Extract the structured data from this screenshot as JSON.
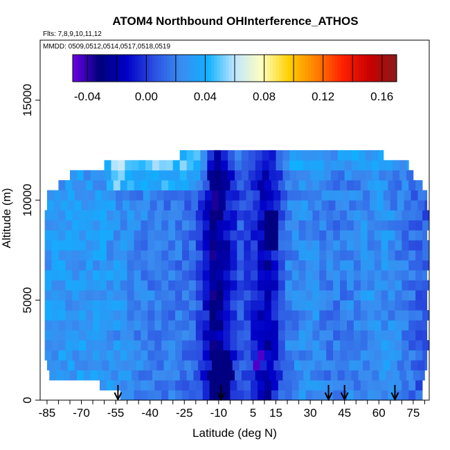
{
  "chart_data": {
    "type": "heatmap",
    "title": "ATOM4 Northbound OHInterference_ATHOS",
    "flights_label": "Flts: 7,8,9,10,11,12",
    "dates_label": "MMDD: 0509,0512,0514,0517,0518,0519",
    "xlabel": "Latitude (deg N)",
    "ylabel": "Altitude (m)",
    "xlim": [
      -88,
      82
    ],
    "ylim": [
      0,
      18000
    ],
    "x_ticks": [
      -85,
      -80,
      -75,
      -70,
      -65,
      -60,
      -55,
      -50,
      -45,
      -40,
      -35,
      -30,
      -25,
      -20,
      -15,
      -10,
      -5,
      0,
      5,
      10,
      15,
      20,
      25,
      30,
      35,
      40,
      45,
      50,
      55,
      60,
      65,
      70,
      75,
      80
    ],
    "x_tick_labels": [
      "-85",
      "-70",
      "-55",
      "-40",
      "-25",
      "-10",
      "5",
      "15",
      "30",
      "45",
      "60",
      "75"
    ],
    "x_tick_label_values": [
      -85,
      -70,
      -55,
      -40,
      -25,
      -10,
      5,
      15,
      30,
      45,
      60,
      75
    ],
    "y_ticks": [
      0,
      5000,
      10000,
      15000
    ],
    "y_tick_labels": [
      "0",
      "5000",
      "10000",
      "15000"
    ],
    "colorbar": {
      "range": [
        -0.05,
        0.17
      ],
      "breaks": [
        -0.04,
        -0.02,
        0.0,
        0.02,
        0.04,
        0.06,
        0.08,
        0.1,
        0.12,
        0.14,
        0.16
      ],
      "tick_labels": [
        "-0.04",
        "0.00",
        "0.04",
        "0.08",
        "0.12",
        "0.16"
      ],
      "tick_values": [
        -0.04,
        0.0,
        0.04,
        0.08,
        0.12,
        0.16
      ],
      "colors": [
        "#6a00e6",
        "#00007a",
        "#0000c8",
        "#2b4fe0",
        "#3a8cf0",
        "#10b0ff",
        "#bfe6ff",
        "#ffffc0",
        "#ffd000",
        "#ff8000",
        "#ff2000",
        "#c80000",
        "#8a1a1a"
      ]
    },
    "grid": false,
    "arrow_latitudes": [
      -54,
      -9,
      38,
      45,
      67
    ],
    "altitude_bins_m": [
      0,
      500,
      1000,
      1500,
      2000,
      2500,
      3000,
      3500,
      4000,
      4500,
      5000,
      5500,
      6000,
      6500,
      7000,
      7500,
      8000,
      8500,
      9000,
      9500,
      10000,
      10500,
      11000,
      11500,
      12000
    ],
    "latitude_extent_by_bin": [
      [
        -53,
        79
      ],
      [
        -62,
        79
      ],
      [
        -84,
        80
      ],
      [
        -85,
        81
      ],
      [
        -86,
        81
      ],
      [
        -86,
        82
      ],
      [
        -86,
        81
      ],
      [
        -86,
        81
      ],
      [
        -86,
        82
      ],
      [
        -86,
        81
      ],
      [
        -86,
        81
      ],
      [
        -86,
        82
      ],
      [
        -86,
        81
      ],
      [
        -86,
        82
      ],
      [
        -86,
        82
      ],
      [
        -86,
        82
      ],
      [
        -86,
        81
      ],
      [
        -86,
        82
      ],
      [
        -86,
        82
      ],
      [
        -85,
        81
      ],
      [
        -85,
        81
      ],
      [
        -80,
        79
      ],
      [
        -75,
        75
      ],
      [
        -60,
        73
      ],
      [
        -27,
        62
      ]
    ],
    "field": [
      [
        -60,
        0.03
      ],
      [
        -50,
        0.025
      ],
      [
        -40,
        0.02
      ],
      [
        -30,
        0.018
      ],
      [
        -20,
        0.012
      ],
      [
        -15,
        -0.01
      ],
      [
        -12,
        -0.03
      ],
      [
        -8,
        -0.02
      ],
      [
        0,
        0.01
      ],
      [
        8,
        -0.01
      ],
      [
        12,
        -0.02
      ],
      [
        20,
        0.02
      ],
      [
        30,
        0.025
      ],
      [
        40,
        0.018
      ],
      [
        50,
        0.022
      ],
      [
        60,
        0.028
      ],
      [
        70,
        0.02
      ],
      [
        78,
        0.01
      ]
    ]
  }
}
